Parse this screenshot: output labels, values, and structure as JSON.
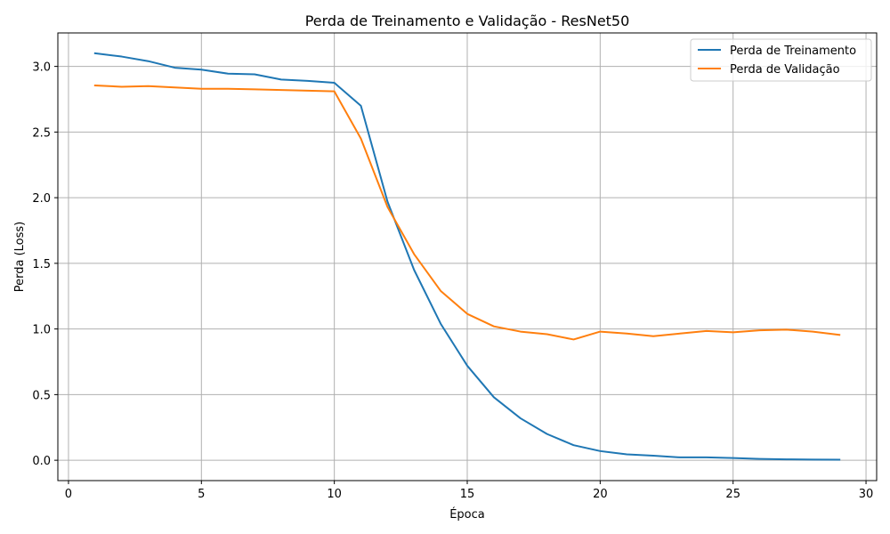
{
  "chart_data": {
    "type": "line",
    "title": "Perda de Treinamento e Validação - ResNet50",
    "xlabel": "Época",
    "ylabel": "Perda (Loss)",
    "xlim": [
      -0.4,
      30.4
    ],
    "ylim": [
      -0.155,
      3.255
    ],
    "xticks": [
      0,
      5,
      10,
      15,
      20,
      25,
      30
    ],
    "yticks": [
      0.0,
      0.5,
      1.0,
      1.5,
      2.0,
      2.5,
      3.0
    ],
    "ytick_labels": [
      "0.0",
      "0.5",
      "1.0",
      "1.5",
      "2.0",
      "2.5",
      "3.0"
    ],
    "grid": true,
    "legend_position": "top-right",
    "x": [
      1,
      2,
      3,
      4,
      5,
      6,
      7,
      8,
      9,
      10,
      11,
      12,
      13,
      14,
      15,
      16,
      17,
      18,
      19,
      20,
      21,
      22,
      23,
      24,
      25,
      26,
      27,
      28,
      29
    ],
    "series": [
      {
        "name": "Perda de Treinamento",
        "color": "#1f77b4",
        "values": [
          3.1,
          3.075,
          3.04,
          2.99,
          2.975,
          2.945,
          2.94,
          2.9,
          2.89,
          2.875,
          2.7,
          1.97,
          1.45,
          1.04,
          0.72,
          0.48,
          0.32,
          0.2,
          0.115,
          0.07,
          0.045,
          0.035,
          0.022,
          0.022,
          0.017,
          0.01,
          0.007,
          0.005,
          0.004
        ]
      },
      {
        "name": "Perda de Validação",
        "color": "#ff7f0e",
        "values": [
          2.855,
          2.845,
          2.85,
          2.84,
          2.83,
          2.83,
          2.825,
          2.82,
          2.815,
          2.81,
          2.45,
          1.93,
          1.57,
          1.29,
          1.115,
          1.02,
          0.98,
          0.96,
          0.92,
          0.98,
          0.965,
          0.945,
          0.965,
          0.985,
          0.975,
          0.99,
          0.995,
          0.98,
          0.955
        ]
      }
    ]
  }
}
